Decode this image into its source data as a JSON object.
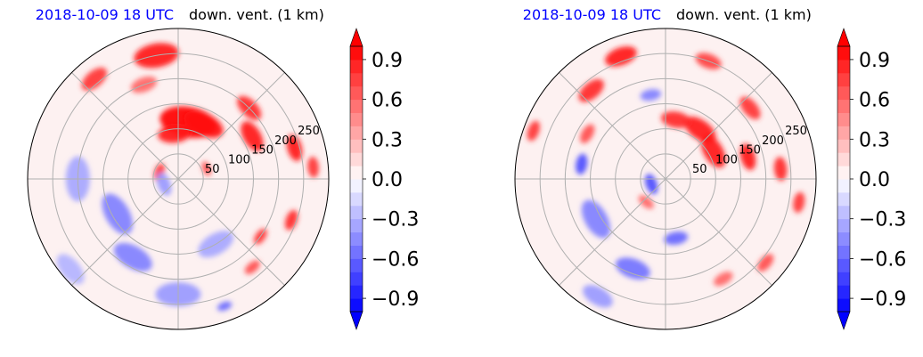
{
  "chart_data": [
    {
      "type": "heatmap",
      "projection": "polar",
      "title_left": "2018-10-09 18 UTC",
      "title_right": "down. vent. (1 km)",
      "radial_ticks": [
        "50",
        "100",
        "150",
        "200",
        "250"
      ],
      "radial_max": 300,
      "colorbar": {
        "min": -1.0,
        "max": 1.0,
        "extend": "both",
        "cmap": "bwr",
        "ticks": [
          "−0.9",
          "−0.6",
          "−0.3",
          "0.0",
          "0.3",
          "0.6",
          "0.9"
        ],
        "tick_values": [
          -0.9,
          -0.6,
          -0.3,
          0.0,
          0.3,
          0.6,
          0.9
        ]
      },
      "grid": true,
      "field_blobs": [
        {
          "az": 80,
          "r": 115,
          "val": 1.0,
          "rad": 38
        },
        {
          "az": 65,
          "r": 120,
          "val": 0.95,
          "rad": 28
        },
        {
          "az": 95,
          "r": 90,
          "val": 0.9,
          "rad": 22
        },
        {
          "az": 30,
          "r": 170,
          "val": 0.9,
          "rad": 22
        },
        {
          "az": 45,
          "r": 200,
          "val": 0.85,
          "rad": 20
        },
        {
          "az": 15,
          "r": 240,
          "val": 0.9,
          "rad": 18
        },
        {
          "az": 5,
          "r": 270,
          "val": 0.8,
          "rad": 14
        },
        {
          "az": -20,
          "r": 240,
          "val": 0.85,
          "rad": 14
        },
        {
          "az": -35,
          "r": 200,
          "val": 0.8,
          "rad": 12
        },
        {
          "az": -50,
          "r": 230,
          "val": 0.7,
          "rad": 12
        },
        {
          "az": 100,
          "r": 250,
          "val": 0.9,
          "rad": 30
        },
        {
          "az": 130,
          "r": 260,
          "val": 0.8,
          "rad": 20
        },
        {
          "az": 110,
          "r": 200,
          "val": 0.6,
          "rad": 18
        },
        {
          "az": 160,
          "r": 40,
          "val": 0.8,
          "rad": 12
        },
        {
          "az": 20,
          "r": 60,
          "val": 0.7,
          "rad": 10
        },
        {
          "az": -150,
          "r": 140,
          "val": -0.5,
          "rad": 30
        },
        {
          "az": -120,
          "r": 180,
          "val": -0.5,
          "rad": 28
        },
        {
          "az": -90,
          "r": 230,
          "val": -0.4,
          "rad": 30
        },
        {
          "az": -60,
          "r": 150,
          "val": -0.35,
          "rad": 26
        },
        {
          "az": 180,
          "r": 200,
          "val": -0.35,
          "rad": 30
        },
        {
          "az": -140,
          "r": 280,
          "val": -0.3,
          "rad": 24
        },
        {
          "az": -70,
          "r": 270,
          "val": -0.6,
          "rad": 10
        },
        {
          "az": 200,
          "r": 30,
          "val": -0.4,
          "rad": 16
        }
      ]
    },
    {
      "type": "heatmap",
      "projection": "polar",
      "title_left": "2018-10-09 18 UTC",
      "title_right": "down. vent. (1 km)",
      "radial_ticks": [
        "50",
        "100",
        "150",
        "200",
        "250"
      ],
      "radial_max": 300,
      "colorbar": {
        "min": -1.0,
        "max": 1.0,
        "extend": "both",
        "cmap": "bwr",
        "ticks": [
          "−0.9",
          "−0.6",
          "−0.3",
          "0.0",
          "0.3",
          "0.6",
          "0.9"
        ],
        "tick_values": [
          -0.9,
          -0.6,
          -0.3,
          0.0,
          0.3,
          0.6,
          0.9
        ]
      },
      "grid": true,
      "field_blobs": [
        {
          "az": 30,
          "r": 110,
          "val": 0.9,
          "rad": 24
        },
        {
          "az": 55,
          "r": 120,
          "val": 0.9,
          "rad": 24
        },
        {
          "az": 80,
          "r": 120,
          "val": 0.85,
          "rad": 20
        },
        {
          "az": 15,
          "r": 170,
          "val": 0.9,
          "rad": 18
        },
        {
          "az": 5,
          "r": 230,
          "val": 0.85,
          "rad": 16
        },
        {
          "az": -10,
          "r": 270,
          "val": 0.8,
          "rad": 14
        },
        {
          "az": 40,
          "r": 220,
          "val": 0.8,
          "rad": 18
        },
        {
          "az": 70,
          "r": 250,
          "val": 0.75,
          "rad": 18
        },
        {
          "az": 110,
          "r": 260,
          "val": 0.9,
          "rad": 22
        },
        {
          "az": 130,
          "r": 230,
          "val": 0.85,
          "rad": 20
        },
        {
          "az": 150,
          "r": 180,
          "val": 0.7,
          "rad": 14
        },
        {
          "az": 160,
          "r": 280,
          "val": 0.8,
          "rad": 14
        },
        {
          "az": -40,
          "r": 260,
          "val": 0.7,
          "rad": 14
        },
        {
          "az": -60,
          "r": 230,
          "val": 0.6,
          "rad": 14
        },
        {
          "az": 200,
          "r": 30,
          "val": -0.7,
          "rad": 14
        },
        {
          "az": -150,
          "r": 160,
          "val": -0.5,
          "rad": 28
        },
        {
          "az": -110,
          "r": 190,
          "val": -0.55,
          "rad": 24
        },
        {
          "az": -80,
          "r": 120,
          "val": -0.6,
          "rad": 16
        },
        {
          "az": 170,
          "r": 170,
          "val": -0.7,
          "rad": 14
        },
        {
          "az": 100,
          "r": 170,
          "val": -0.5,
          "rad": 14
        },
        {
          "az": -120,
          "r": 270,
          "val": -0.4,
          "rad": 22
        },
        {
          "az": 230,
          "r": 60,
          "val": 0.6,
          "rad": 12
        }
      ]
    }
  ]
}
